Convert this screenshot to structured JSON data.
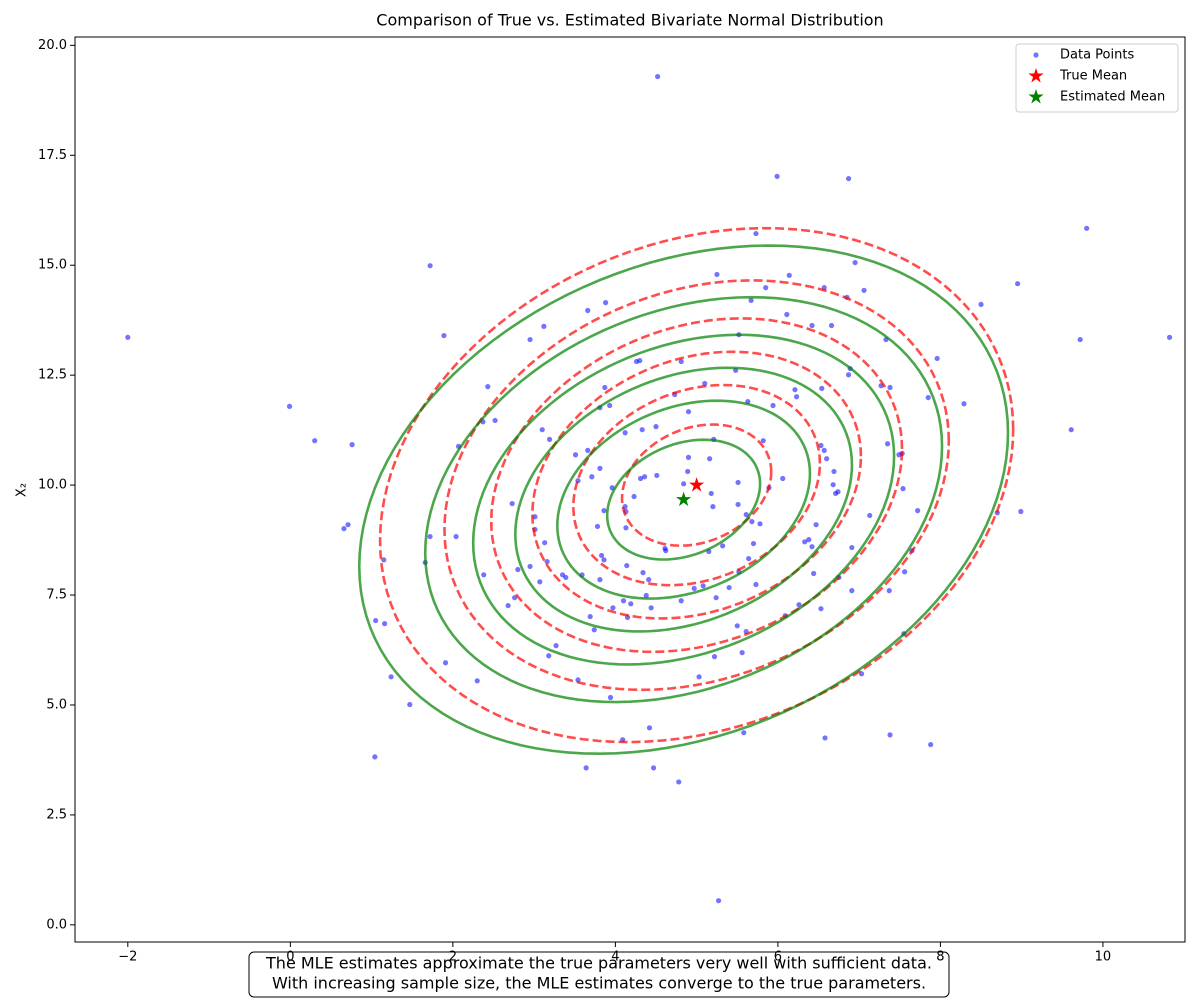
{
  "chart_data": {
    "type": "scatter",
    "title": "Comparison of True vs. Estimated Bivariate Normal Distribution",
    "xlabel": "X₁",
    "ylabel": "X₂",
    "xlim": [
      -2.65,
      11.01
    ],
    "ylim": [
      -0.39,
      20.19
    ],
    "xticks": [
      {
        "value": -2,
        "label": "−2"
      },
      0,
      2,
      4,
      6,
      8,
      10
    ],
    "yticks": [
      {
        "value": 0,
        "label": "0.0"
      },
      2.5,
      {
        "value": 5,
        "label": "5.0"
      },
      7.5,
      {
        "value": 10,
        "label": "10.0"
      },
      12.5,
      {
        "value": 15,
        "label": "15.0"
      },
      17.5,
      {
        "value": 20,
        "label": "20.0"
      }
    ],
    "legend": "upper right",
    "series": [
      {
        "name": "Data Points",
        "color": "#0000ff",
        "marker": "circle",
        "x": [
          -2.0,
          -0.01,
          0.3,
          0.76,
          0.66,
          0.71,
          1.15,
          1.05,
          1.16,
          1.24,
          1.04,
          1.47,
          1.72,
          1.89,
          1.66,
          1.72,
          2.04,
          2.07,
          1.91,
          2.3,
          2.38,
          2.43,
          2.52,
          2.37,
          2.73,
          2.68,
          2.76,
          2.8,
          2.95,
          2.95,
          3.01,
          3.01,
          3.07,
          3.1,
          3.12,
          3.16,
          3.13,
          3.19,
          3.18,
          3.27,
          3.35,
          3.39,
          3.59,
          3.54,
          3.51,
          3.54,
          3.64,
          3.66,
          3.66,
          3.71,
          3.69,
          3.74,
          3.78,
          3.81,
          3.81,
          3.81,
          3.86,
          3.83,
          3.88,
          3.86,
          3.87,
          3.96,
          3.93,
          3.94,
          3.97,
          4.1,
          4.09,
          4.12,
          4.12,
          4.13,
          4.13,
          4.14,
          4.15,
          4.19,
          4.23,
          4.26,
          4.3,
          4.31,
          4.33,
          4.34,
          4.38,
          4.36,
          4.41,
          4.44,
          4.42,
          4.47,
          4.5,
          4.51,
          4.52,
          4.61,
          4.62,
          4.73,
          4.78,
          4.81,
          4.81,
          4.84,
          4.89,
          4.9,
          4.9,
          4.97,
          5.03,
          5.08,
          5.1,
          5.15,
          5.16,
          5.18,
          5.2,
          5.21,
          5.22,
          5.24,
          5.25,
          5.27,
          5.32,
          5.4,
          5.48,
          5.5,
          5.51,
          5.51,
          5.52,
          5.52,
          5.56,
          5.58,
          5.61,
          5.61,
          5.63,
          5.64,
          5.67,
          5.68,
          5.7,
          5.73,
          5.73,
          5.78,
          5.82,
          5.85,
          5.89,
          5.94,
          5.99,
          6.06,
          6.09,
          6.11,
          6.14,
          6.21,
          6.23,
          6.26,
          6.33,
          6.38,
          6.42,
          6.42,
          6.44,
          6.47,
          6.53,
          6.53,
          6.54,
          6.57,
          6.57,
          6.58,
          6.6,
          6.66,
          6.68,
          6.69,
          6.71,
          6.74,
          6.75,
          6.85,
          6.87,
          6.87,
          6.89,
          6.91,
          6.91,
          6.95,
          7.03,
          7.06,
          7.13,
          7.27,
          7.33,
          7.35,
          7.37,
          7.38,
          7.38,
          7.49,
          7.53,
          7.54,
          7.55,
          7.56,
          7.65,
          7.72,
          7.85,
          7.88,
          7.96,
          8.29,
          8.5,
          8.7,
          8.95,
          8.99,
          9.61,
          9.72,
          9.8,
          10.82
        ],
        "y": [
          13.36,
          11.79,
          11.01,
          10.92,
          9.01,
          9.1,
          8.3,
          6.92,
          6.85,
          5.64,
          3.82,
          5.01,
          14.99,
          13.4,
          8.24,
          8.83,
          8.83,
          10.88,
          5.96,
          5.55,
          7.96,
          12.24,
          11.47,
          11.44,
          9.58,
          7.26,
          7.44,
          8.08,
          8.15,
          13.31,
          9.28,
          8.99,
          7.8,
          11.26,
          13.61,
          8.26,
          8.69,
          11.04,
          6.12,
          6.35,
          7.96,
          7.9,
          7.96,
          10.1,
          10.69,
          5.57,
          3.57,
          13.97,
          10.79,
          10.19,
          7.01,
          6.71,
          9.06,
          7.85,
          10.38,
          11.76,
          8.3,
          8.4,
          14.15,
          9.42,
          12.22,
          9.94,
          11.81,
          5.17,
          7.21,
          7.37,
          4.21,
          11.19,
          9.51,
          9.4,
          9.03,
          8.17,
          6.99,
          7.3,
          9.74,
          12.81,
          12.83,
          10.15,
          11.26,
          8.01,
          7.49,
          10.19,
          7.85,
          7.21,
          4.48,
          3.57,
          11.33,
          10.22,
          19.29,
          8.56,
          8.51,
          12.06,
          3.25,
          12.81,
          7.37,
          10.03,
          10.31,
          11.67,
          10.63,
          7.65,
          5.64,
          7.71,
          12.31,
          8.49,
          10.6,
          9.81,
          9.51,
          11.04,
          6.1,
          7.44,
          14.79,
          0.55,
          8.62,
          7.67,
          12.61,
          6.8,
          10.06,
          9.56,
          13.42,
          8.03,
          6.19,
          4.37,
          6.67,
          9.33,
          11.9,
          8.33,
          14.2,
          9.17,
          8.67,
          7.74,
          15.72,
          9.12,
          11.01,
          14.49,
          9.94,
          11.81,
          17.02,
          10.15,
          7.03,
          13.88,
          14.77,
          12.17,
          12.01,
          7.28,
          8.71,
          8.76,
          13.63,
          8.6,
          7.99,
          9.1,
          7.19,
          10.9,
          12.2,
          14.49,
          10.79,
          4.25,
          10.6,
          13.63,
          10.01,
          10.31,
          9.81,
          9.85,
          7.9,
          14.27,
          16.97,
          12.51,
          12.65,
          8.58,
          7.6,
          15.06,
          5.71,
          14.43,
          9.31,
          12.26,
          13.31,
          10.94,
          7.6,
          12.22,
          4.32,
          10.69,
          10.72,
          9.92,
          6.62,
          8.03,
          8.51,
          9.42,
          11.99,
          4.1,
          12.88,
          11.85,
          14.11,
          9.37,
          14.58,
          9.4,
          11.26,
          13.31,
          15.84,
          13.36
        ]
      },
      {
        "name": "True Mean",
        "color": "#ff0000",
        "marker": "star",
        "x": [
          5
        ],
        "y": [
          10
        ]
      },
      {
        "name": "Estimated Mean",
        "color": "#008000",
        "marker": "star",
        "x": [
          4.84
        ],
        "y": [
          9.67
        ]
      }
    ],
    "contours": [
      {
        "center_series": 1,
        "covariance": [
          [
            4,
            1.3
          ],
          [
            1.3,
            9
          ]
        ],
        "color": "#ff0000",
        "dashed": true,
        "levels": [
          0.15,
          0.3,
          0.45,
          0.6,
          0.75,
          0.9
        ]
      },
      {
        "center_series": 2,
        "covariance": [
          [
            4.2,
            1.6
          ],
          [
            1.6,
            8.8
          ]
        ],
        "color": "#008000",
        "dashed": false,
        "levels": [
          0.15,
          0.3,
          0.45,
          0.6,
          0.75,
          0.9
        ]
      }
    ],
    "annotation": [
      "The MLE estimates approximate the true parameters very well with sufficient data.",
      "With increasing sample size, the MLE estimates converge to the true parameters."
    ]
  }
}
